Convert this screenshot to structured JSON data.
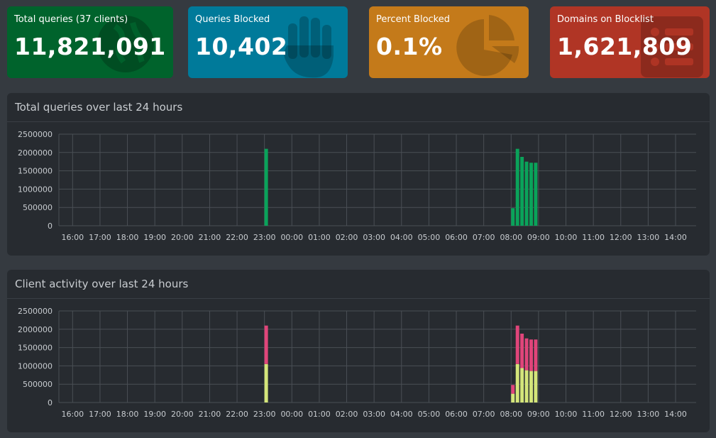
{
  "stats": [
    {
      "label": "Total queries (37 clients)",
      "value": "11,821,091",
      "color": "#00632c",
      "icon": "globe-icon"
    },
    {
      "label": "Queries Blocked",
      "value": "10,402",
      "color": "#007a9a",
      "icon": "hand-icon"
    },
    {
      "label": "Percent Blocked",
      "value": "0.1%",
      "color": "#c47a1a",
      "icon": "pie-chart-icon"
    },
    {
      "label": "Domains on Blocklist",
      "value": "1,621,809",
      "color": "#b03525",
      "icon": "list-icon"
    }
  ],
  "panels": {
    "queries_title": "Total queries over last 24 hours",
    "clients_title": "Client activity over last 24 hours"
  },
  "chart_data": [
    {
      "type": "bar",
      "title": "Total queries over last 24 hours",
      "ylim": [
        0,
        2500000
      ],
      "yticks": [
        "2500000",
        "2000000",
        "1500000",
        "1000000",
        "500000",
        "0"
      ],
      "xticks": [
        "16:00",
        "17:00",
        "18:00",
        "19:00",
        "20:00",
        "21:00",
        "22:00",
        "23:00",
        "00:00",
        "01:00",
        "02:00",
        "03:00",
        "04:00",
        "05:00",
        "06:00",
        "07:00",
        "08:00",
        "09:00",
        "10:00",
        "11:00",
        "12:00",
        "13:00",
        "14:00"
      ],
      "grid": true,
      "colors": [
        "#0aa35a"
      ],
      "series": [
        {
          "values": [
            {
              "t": 23.0,
              "v": 2100000
            },
            {
              "t": 8.0,
              "v": 480000
            },
            {
              "t": 8.167,
              "v": 2100000
            },
            {
              "t": 8.333,
              "v": 1880000
            },
            {
              "t": 8.5,
              "v": 1750000
            },
            {
              "t": 8.667,
              "v": 1720000
            },
            {
              "t": 8.833,
              "v": 1720000
            }
          ]
        }
      ]
    },
    {
      "type": "bar",
      "stacked": true,
      "title": "Client activity over last 24 hours",
      "ylim": [
        0,
        2500000
      ],
      "yticks": [
        "2500000",
        "2000000",
        "1500000",
        "1000000",
        "500000",
        "0"
      ],
      "xticks": [
        "16:00",
        "17:00",
        "18:00",
        "19:00",
        "20:00",
        "21:00",
        "22:00",
        "23:00",
        "00:00",
        "01:00",
        "02:00",
        "03:00",
        "04:00",
        "05:00",
        "06:00",
        "07:00",
        "08:00",
        "09:00",
        "10:00",
        "11:00",
        "12:00",
        "13:00",
        "14:00"
      ],
      "grid": true,
      "colors": [
        "#d4e57a",
        "#e0457a"
      ],
      "series": [
        {
          "values": [
            {
              "t": 23.0,
              "v": 1050000
            },
            {
              "t": 8.0,
              "v": 240000
            },
            {
              "t": 8.167,
              "v": 1050000
            },
            {
              "t": 8.333,
              "v": 940000
            },
            {
              "t": 8.5,
              "v": 880000
            },
            {
              "t": 8.667,
              "v": 860000
            },
            {
              "t": 8.833,
              "v": 860000
            }
          ]
        },
        {
          "values": [
            {
              "t": 23.0,
              "v": 1050000
            },
            {
              "t": 8.0,
              "v": 240000
            },
            {
              "t": 8.167,
              "v": 1050000
            },
            {
              "t": 8.333,
              "v": 940000
            },
            {
              "t": 8.5,
              "v": 870000
            },
            {
              "t": 8.667,
              "v": 860000
            },
            {
              "t": 8.833,
              "v": 860000
            }
          ]
        }
      ]
    }
  ]
}
